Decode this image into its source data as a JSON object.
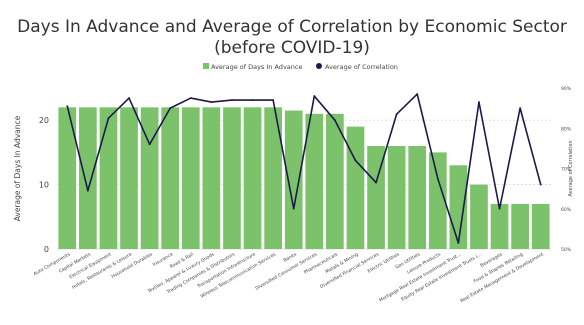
{
  "chart_data": {
    "type": "bar",
    "title": "Days In Advance and Average of Correlation by Economic Sector",
    "subtitle": "(before COVID-19)",
    "legend": {
      "placement": "top-center",
      "entries": [
        "Average of Days In Advance",
        "Average of Correlation"
      ]
    },
    "ylabel": "Average of Days In Advance",
    "y2label": "Average of Correlation",
    "ylim": [
      0,
      25
    ],
    "yticks": [
      "0",
      "10",
      "20"
    ],
    "y2lim": [
      0.5,
      0.9
    ],
    "y2ticks": [
      "50%",
      "60%",
      "70%",
      "80%",
      "90%"
    ],
    "grid": true,
    "categories": [
      "Auto Components",
      "Capital Markets",
      "Electrical Equipment",
      "Hotels, Restaurants & Leisure",
      "Household Durables",
      "Insurance",
      "Road & Rail",
      "Textiles, Apparel & Luxury Goods",
      "Trading Companies & Distributors",
      "Transportation Infrastructure",
      "Wireless Telecommunication Services",
      "Banks",
      "Diversified Consumer Services",
      "Pharmaceuticals",
      "Metals & Mining",
      "Diversified Financial Services",
      "Electric Utilities",
      "Gas Utilities",
      "Leisure Products",
      "Mortgage Real Estate Investment Trust...",
      "Equity Real Estate Investment Trusts (...",
      "Beverages",
      "Food & Staples Retailing",
      "Real Estate Management & Development"
    ],
    "series": [
      {
        "name": "Average of Days In Advance",
        "type": "bar",
        "axis": "left",
        "values": [
          22,
          22,
          22,
          22,
          22,
          22,
          22,
          22,
          22,
          22,
          22,
          21.5,
          21,
          21,
          19,
          16,
          16,
          16,
          15,
          13,
          10,
          7,
          7,
          7
        ]
      },
      {
        "name": "Average of Correlation",
        "type": "line",
        "axis": "right",
        "values": [
          0.855,
          0.645,
          0.825,
          0.875,
          0.76,
          0.85,
          0.875,
          0.865,
          0.87,
          0.87,
          0.87,
          0.6,
          0.88,
          0.82,
          0.72,
          0.665,
          0.835,
          0.885,
          0.675,
          0.515,
          0.865,
          0.6,
          0.85,
          0.66
        ]
      }
    ],
    "colors": {
      "bar": "#7cc26b",
      "line": "#1c1a4a",
      "grid": "#d9d9d9",
      "text": "#404040"
    }
  }
}
